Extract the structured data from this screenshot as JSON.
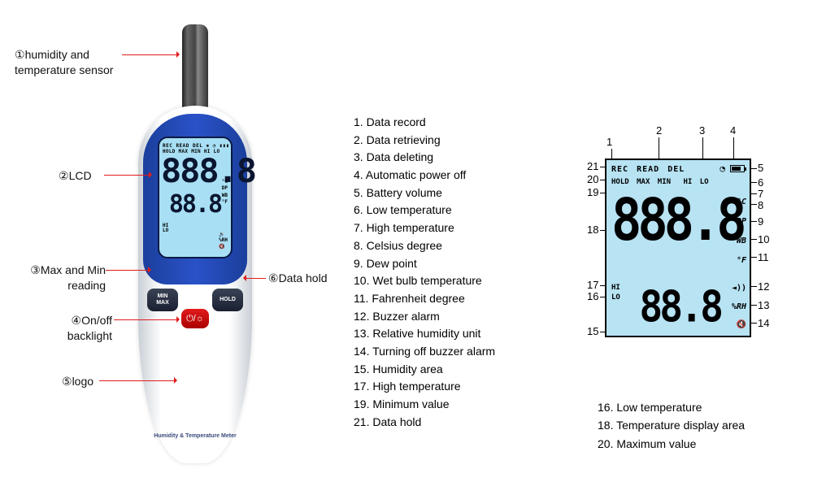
{
  "callouts": {
    "c1": {
      "label": "humidity and\ntemperature sensor",
      "num": "①"
    },
    "c2": {
      "label": "LCD",
      "num": "②"
    },
    "c3": {
      "label": "Max and Min\nreading",
      "num": "③"
    },
    "c4": {
      "label": "On/off\nbacklight",
      "num": "④"
    },
    "c5": {
      "label": "logo",
      "num": "⑤"
    },
    "c6": {
      "label": "Data hold",
      "num": "⑥"
    }
  },
  "device": {
    "lcd_line1": "REC READ DEL ✱ ◔ ▮▮▮",
    "lcd_line2": "HOLD MAX MIN  HI  LO",
    "lcd_main": "888.8",
    "lcd_sub": "88.8",
    "units_top": "°C\nDP\nWB\n°F",
    "units_bot": "🔊\n%RH\n🔇",
    "left_hi": "HI\nLO",
    "btn_min_max": "MIN\nMAX",
    "btn_hold": "HOLD",
    "btn_power": "⏻/☼",
    "logo": "Humidity & Temperature Meter"
  },
  "list": [
    "1. Data record",
    "2. Data retrieving",
    "3. Data deleting",
    "4. Automatic power off",
    "5. Battery volume",
    "6. Low temperature",
    "7. High temperature",
    "8. Celsius degree",
    "9. Dew point",
    "10. Wet bulb temperature",
    "11. Fahrenheit degree",
    "12. Buzzer alarm",
    "13. Relative humidity unit",
    "14. Turning off buzzer alarm",
    "15. Humidity area",
    "17. High temperature",
    "19. Minimum value",
    "21. Data hold"
  ],
  "extra": [
    "16. Low temperature",
    "18. Temperature display area",
    "20. Maximum value"
  ],
  "diagram": {
    "row1": [
      "REC",
      "READ",
      "DEL"
    ],
    "row2": [
      "HOLD",
      "MAX",
      "MIN",
      "HI",
      "LO"
    ],
    "seg_main": "888.8",
    "seg_sub": "88.8",
    "right_labels": {
      "c": "°C",
      "dp": "DP",
      "wb": "WB",
      "f": "°F",
      "spk": "◄))",
      "rh": "%RH",
      "mute": "🔇"
    },
    "left_labels": {
      "hi": "HI",
      "lo": "LO"
    },
    "timer": "◔",
    "numbers_top": [
      "1",
      "2",
      "3",
      "4"
    ],
    "numbers_right": [
      "5",
      "6",
      "7",
      "8",
      "9",
      "10",
      "11",
      "12",
      "13",
      "14"
    ],
    "numbers_left": [
      "21",
      "20",
      "19",
      "18",
      "17",
      "16",
      "15"
    ]
  },
  "colors": {
    "leader": "#e21b1b",
    "lcd_bg": "#a8dff4",
    "blue": "#1b3f9c"
  }
}
